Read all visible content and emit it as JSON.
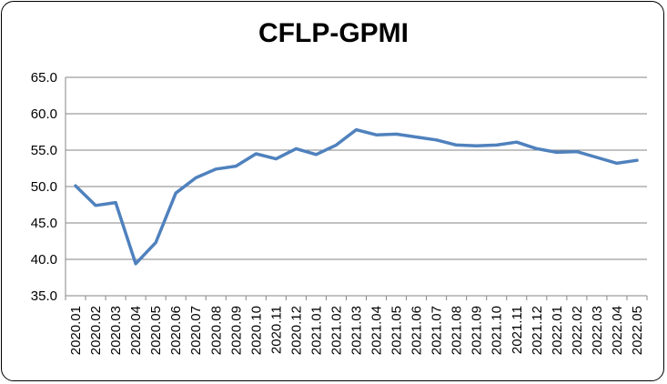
{
  "chart_data": {
    "type": "line",
    "title": "CFLP-GPMI",
    "xlabel": "",
    "ylabel": "",
    "ylim": [
      35.0,
      65.0
    ],
    "yticks": [
      "35.0",
      "40.0",
      "45.0",
      "50.0",
      "55.0",
      "60.0",
      "65.0"
    ],
    "grid": true,
    "legend": "none",
    "line_color": "#4F81BD",
    "categories": [
      "2020.01",
      "2020.02",
      "2020.03",
      "2020.04",
      "2020.05",
      "2020.06",
      "2020.07",
      "2020.08",
      "2020.09",
      "2020.10",
      "2020.11",
      "2020.12",
      "2021.01",
      "2021.02",
      "2021.03",
      "2021.04",
      "2021.05",
      "2021.06",
      "2021.07",
      "2021.08",
      "2021.09",
      "2021.10",
      "2021.11",
      "2021.12",
      "2022.01",
      "2022.02",
      "2022.03",
      "2022.04",
      "2022.05"
    ],
    "series": [
      {
        "values": [
          50.1,
          47.4,
          47.8,
          39.4,
          42.3,
          49.1,
          51.2,
          52.4,
          52.8,
          54.5,
          53.8,
          55.2,
          54.4,
          55.7,
          57.8,
          57.1,
          57.2,
          56.8,
          56.4,
          55.7,
          55.6,
          55.7,
          56.1,
          55.2,
          54.7,
          54.8,
          54.0,
          53.2,
          53.6
        ]
      }
    ]
  }
}
